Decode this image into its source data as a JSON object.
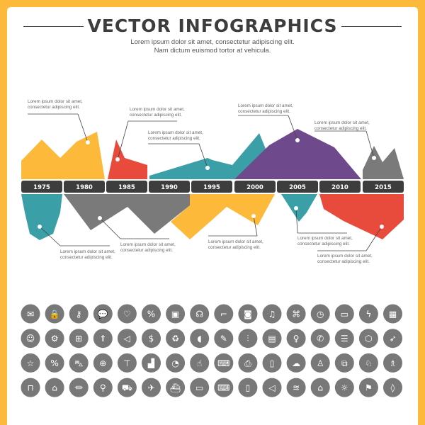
{
  "header": {
    "title": "VECTOR INFOGRAPHICS",
    "subtitle_line1": "Lorem ipsum dolor sit amet, consectetur adipiscing elit.",
    "subtitle_line2": "Nam dictum euismod tortor at vehicula."
  },
  "colors": {
    "border": "#FDB93A",
    "yellow": "#FDB93A",
    "red": "#E84B3C",
    "teal": "#3A9FA6",
    "purple": "#6E4A8D",
    "gray": "#7A7A7A",
    "bar": "#3D3D3D",
    "icon_bg": "#787878"
  },
  "timeline": {
    "years": [
      "1975",
      "1980",
      "1985",
      "1990",
      "1995",
      "2000",
      "2005",
      "2010",
      "2015"
    ]
  },
  "callouts": [
    {
      "line1": "Lorem ipsum dolor sit amet,",
      "line2": "consectetur adipiscing elit."
    },
    {
      "line1": "Lorem ipsum dolor sit amet,",
      "line2": "consectetur adipiscing elit."
    },
    {
      "line1": "Lorem ipsum dolor sit amet,",
      "line2": "consectetur adipiscing elit."
    },
    {
      "line1": "Lorem ipsum dolor sit amet,",
      "line2": "consectetur adipiscing elit."
    },
    {
      "line1": "Lorem ipsum dolor sit amet,",
      "line2": "consectetur adipiscing elit."
    },
    {
      "line1": "Lorem ipsum dolor sit amet,",
      "line2": "consectetur adipiscing elit."
    },
    {
      "line1": "Lorem ipsum dolor sit amet,",
      "line2": "consectetur adipiscing elit."
    },
    {
      "line1": "Lorem ipsum dolor sit amet,",
      "line2": "consectetur adipiscing elit."
    },
    {
      "line1": "Lorem ipsum dolor sit amet,",
      "line2": "consectetur adipiscing elit."
    },
    {
      "line1": "Lorem ipsum dolor sit amet,",
      "line2": "consectetur adipiscing elit."
    }
  ],
  "icons": [
    [
      "mail",
      "lock",
      "key",
      "chat",
      "heart",
      "discount-badge",
      "box",
      "headset",
      "shoe",
      "camera",
      "music",
      "gamepad",
      "clock",
      "battery",
      "lightning",
      "chip"
    ],
    [
      "user-portrait",
      "gear",
      "gift",
      "tree",
      "megaphone",
      "money",
      "recycle",
      "piggy-bank",
      "pencil",
      "sliders",
      "document",
      "lightbulb",
      "phone",
      "server",
      "cube",
      "rocket"
    ],
    [
      "star",
      "percent",
      "cart",
      "globe",
      "tshirt",
      "bar-chart",
      "pie-chart",
      "thumbs-up",
      "keyboard",
      "printer",
      "book",
      "cloud",
      "joystick",
      "puzzle",
      "chess-knight",
      "chess-pawn"
    ],
    [
      "shopping-bag",
      "store",
      "bank",
      "map-pin",
      "truck",
      "airplane",
      "ship",
      "monitor",
      "laptop",
      "smartphone",
      "speaker",
      "wifi",
      "home",
      "sun",
      "flag",
      "drop"
    ]
  ]
}
